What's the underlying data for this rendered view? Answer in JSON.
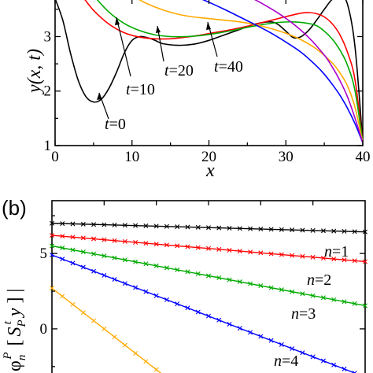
{
  "chart_data": [
    {
      "panel": "a",
      "type": "line",
      "xlabel": "x",
      "ylabel": "y(x, t)",
      "xlim": [
        0,
        40
      ],
      "ylim": [
        1,
        3.7
      ],
      "xticks": [
        0,
        10,
        20,
        30,
        40
      ],
      "yticks": [
        1,
        2,
        3
      ],
      "series": [
        {
          "t": 0,
          "color": "#000000",
          "x": [
            0,
            1,
            2,
            3,
            4,
            5,
            6,
            7,
            8,
            9,
            10,
            11,
            12,
            13,
            14,
            16,
            18,
            20,
            22,
            24,
            26,
            28,
            29,
            30,
            31,
            32,
            33,
            34,
            35,
            36,
            37,
            38,
            39,
            40
          ],
          "y": [
            3.7,
            3.3,
            2.7,
            2.2,
            1.9,
            1.8,
            1.85,
            2.05,
            2.35,
            2.7,
            2.93,
            3.0,
            2.98,
            2.93,
            2.87,
            2.84,
            2.86,
            2.93,
            3.03,
            3.13,
            3.23,
            3.27,
            3.22,
            3.1,
            2.98,
            3.0,
            3.12,
            3.3,
            3.5,
            3.68,
            3.75,
            3.6,
            2.8,
            1.05
          ]
        },
        {
          "t": 10,
          "color": "#ff0000",
          "x": [
            3.5,
            5,
            7,
            9,
            11,
            13,
            15,
            17,
            19,
            21,
            23,
            25,
            27,
            29,
            31,
            32,
            33,
            34,
            35,
            36,
            37,
            38,
            39,
            40
          ],
          "y": [
            3.75,
            3.48,
            3.23,
            3.07,
            2.99,
            2.96,
            2.96,
            2.99,
            3.03,
            3.08,
            3.13,
            3.19,
            3.26,
            3.33,
            3.4,
            3.43,
            3.44,
            3.42,
            3.36,
            3.24,
            3.04,
            2.72,
            2.2,
            1.05
          ]
        },
        {
          "t": 20,
          "color": "#00aa00",
          "x": [
            5,
            7,
            9,
            11,
            13,
            15,
            17,
            19,
            21,
            23,
            25,
            27,
            29,
            31,
            33,
            34,
            35,
            36,
            37,
            38,
            39,
            40
          ],
          "y": [
            3.75,
            3.45,
            3.24,
            3.11,
            3.03,
            3.0,
            3.0,
            3.02,
            3.06,
            3.11,
            3.17,
            3.22,
            3.26,
            3.27,
            3.24,
            3.2,
            3.1,
            2.96,
            2.76,
            2.48,
            2.0,
            1.05
          ]
        },
        {
          "t": 40,
          "color": "#ffaa00",
          "x": [
            10,
            12,
            14,
            16,
            18,
            20,
            22,
            24,
            26,
            28,
            30,
            32,
            34,
            36,
            37,
            38,
            39,
            40
          ],
          "y": [
            3.75,
            3.6,
            3.49,
            3.41,
            3.36,
            3.33,
            3.3,
            3.27,
            3.22,
            3.15,
            3.06,
            2.94,
            2.77,
            2.52,
            2.34,
            2.1,
            1.7,
            1.05
          ]
        },
        {
          "t": null,
          "color": "#0000ff",
          "x": [
            18,
            20,
            22,
            24,
            26,
            28,
            30,
            32,
            34,
            35,
            36,
            37,
            38,
            39,
            40
          ],
          "y": [
            3.75,
            3.63,
            3.5,
            3.36,
            3.22,
            3.07,
            2.9,
            2.71,
            2.46,
            2.31,
            2.13,
            1.93,
            1.69,
            1.4,
            1.05
          ]
        },
        {
          "t": null,
          "color": "#aa00cc",
          "x": [
            25,
            27,
            29,
            31,
            33,
            35,
            36,
            37,
            38,
            39,
            40
          ],
          "y": [
            3.75,
            3.6,
            3.43,
            3.23,
            2.98,
            2.66,
            2.45,
            2.2,
            1.9,
            1.5,
            1.05
          ]
        }
      ],
      "annotations": [
        {
          "t_text": "t",
          "value_text": "=0"
        },
        {
          "t_text": "t",
          "value_text": "=10"
        },
        {
          "t_text": "t",
          "value_text": "=20"
        },
        {
          "t_text": "t",
          "value_text": "=40"
        }
      ]
    },
    {
      "panel": "b",
      "panel_label": "(b)",
      "type": "line",
      "ylabel_phi": "φ",
      "ylabel_sub": "n",
      "ylabel_sup": "P",
      "ylabel_bracket_open": "[",
      "ylabel_S": "S",
      "ylabel_S_sub": "P",
      "ylabel_S_sup": "t",
      "ylabel_y": "y",
      "ylabel_bracket_close": "]",
      "ylabel_abs": "|",
      "ylim": [
        -3.5,
        8.5
      ],
      "yticks": [
        0,
        5
      ],
      "series": [
        {
          "n_text": "n",
          "value_text": "=1",
          "color": "#000000",
          "y_start": 7.0,
          "slope": -0.0095,
          "x_start": 0,
          "x_end": 60
        },
        {
          "n_text": "n",
          "value_text": "=2",
          "color": "#ff0000",
          "y_start": 6.2,
          "slope": -0.029,
          "x_start": 0,
          "x_end": 60
        },
        {
          "n_text": "n",
          "value_text": "=3",
          "color": "#00aa00",
          "y_start": 5.5,
          "slope": -0.066,
          "x_start": 0,
          "x_end": 60
        },
        {
          "n_text": "n",
          "value_text": "=4",
          "color": "#0000ff",
          "y_start": 4.9,
          "slope": -0.135,
          "x_start": 0,
          "x_end": 60
        },
        {
          "n_text": null,
          "value_text": null,
          "color": "#ffaa00",
          "y_start": 2.7,
          "slope": -0.27,
          "x_start": 0,
          "x_end": 22
        }
      ]
    }
  ]
}
